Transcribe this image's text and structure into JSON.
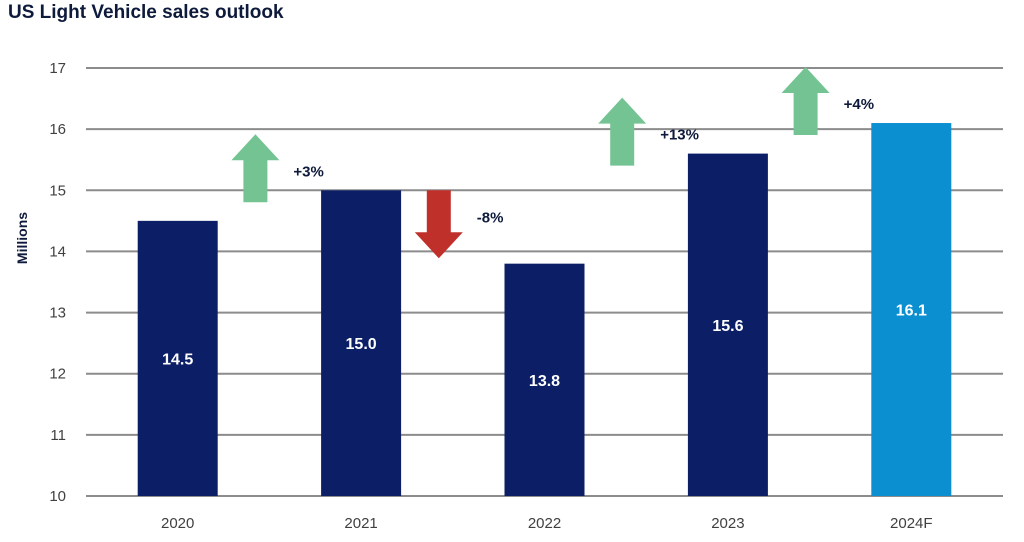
{
  "chart_data": {
    "type": "bar",
    "title": "US Light Vehicle sales outlook",
    "ylabel": "Millions",
    "xlabel": "",
    "ylim": [
      10,
      17
    ],
    "yticks": [
      10,
      11,
      12,
      13,
      14,
      15,
      16,
      17
    ],
    "grid": true,
    "categories": [
      "2020",
      "2021",
      "2022",
      "2023",
      "2024F"
    ],
    "values": [
      14.5,
      15.0,
      13.8,
      15.6,
      16.1
    ],
    "value_labels": [
      "14.5",
      "15.0",
      "13.8",
      "15.6",
      "16.1"
    ],
    "bar_colors": [
      "#0c1f66",
      "#0c1f66",
      "#0c1f66",
      "#0c1f66",
      "#0b8fd1"
    ],
    "changes": [
      {
        "label": "+3%",
        "direction": "up",
        "color": "#74c493"
      },
      {
        "label": "-8%",
        "direction": "down",
        "color": "#c0302b"
      },
      {
        "label": "+13%",
        "direction": "up",
        "color": "#74c493"
      },
      {
        "label": "+4%",
        "direction": "up",
        "color": "#74c493"
      }
    ]
  }
}
